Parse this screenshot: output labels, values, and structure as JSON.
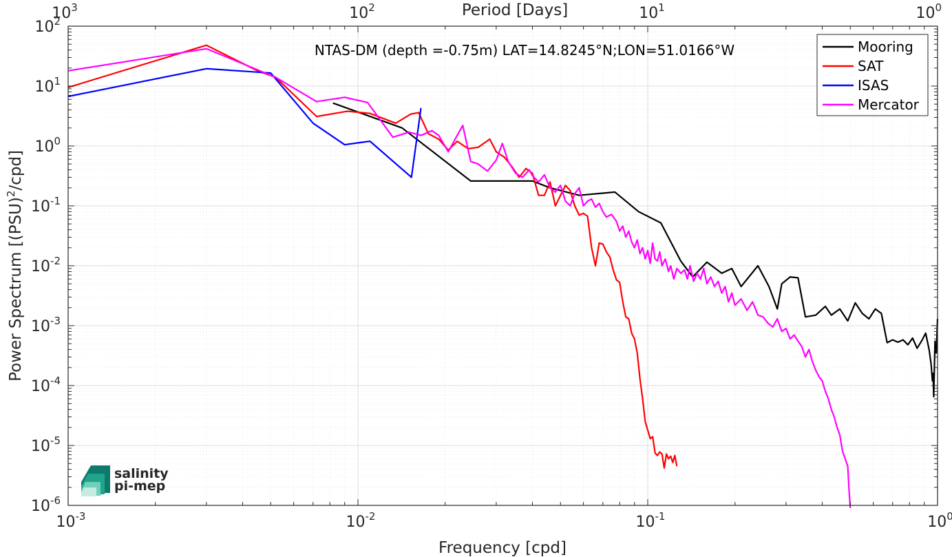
{
  "chart_data": {
    "type": "line",
    "title": "NTAS-DM (depth =-0.75m) LAT=14.8245°N;LON=51.0166°W",
    "xlabel": "Frequency [cpd]",
    "ylabel": "Power Spectrum [(PSU)²/cpd]",
    "x2label": "Period [Days]",
    "xscale": "log",
    "yscale": "log",
    "xlim": [
      0.001,
      1
    ],
    "ylim": [
      1e-06,
      100
    ],
    "grid": true,
    "legend_position": "top-right",
    "xticks": [
      {
        "base": "10",
        "exp": "-3"
      },
      {
        "base": "10",
        "exp": "-2"
      },
      {
        "base": "10",
        "exp": "-1"
      },
      {
        "base": "10",
        "exp": "0"
      }
    ],
    "x2ticks": [
      {
        "base": "10",
        "exp": "3"
      },
      {
        "base": "10",
        "exp": "2"
      },
      {
        "base": "10",
        "exp": "1"
      },
      {
        "base": "10",
        "exp": "0"
      }
    ],
    "yticks": [
      {
        "base": "10",
        "exp": "-6"
      },
      {
        "base": "10",
        "exp": "-5"
      },
      {
        "base": "10",
        "exp": "-4"
      },
      {
        "base": "10",
        "exp": "-3"
      },
      {
        "base": "10",
        "exp": "-2"
      },
      {
        "base": "10",
        "exp": "-1"
      },
      {
        "base": "10",
        "exp": "0"
      },
      {
        "base": "10",
        "exp": "1"
      },
      {
        "base": "10",
        "exp": "2"
      }
    ],
    "series": [
      {
        "name": "Mooring",
        "color": "#000000",
        "points": [
          [
            0.0082,
            5.2
          ],
          [
            0.0142,
            2.0
          ],
          [
            0.0245,
            0.26
          ],
          [
            0.04,
            0.26
          ],
          [
            0.046,
            0.2
          ],
          [
            0.058,
            0.15
          ],
          [
            0.077,
            0.17
          ],
          [
            0.093,
            0.08
          ],
          [
            0.111,
            0.052
          ],
          [
            0.13,
            0.012
          ],
          [
            0.143,
            0.0065
          ],
          [
            0.16,
            0.0115
          ],
          [
            0.18,
            0.0075
          ],
          [
            0.195,
            0.009
          ],
          [
            0.21,
            0.0045
          ],
          [
            0.24,
            0.01
          ],
          [
            0.262,
            0.0045
          ],
          [
            0.28,
            0.0019
          ],
          [
            0.29,
            0.005
          ],
          [
            0.31,
            0.0065
          ],
          [
            0.33,
            0.0063
          ],
          [
            0.35,
            0.0014
          ],
          [
            0.38,
            0.0015
          ],
          [
            0.41,
            0.0021
          ],
          [
            0.43,
            0.0015
          ],
          [
            0.46,
            0.0019
          ],
          [
            0.49,
            0.0012
          ],
          [
            0.52,
            0.0024
          ],
          [
            0.55,
            0.0016
          ],
          [
            0.58,
            0.0013
          ],
          [
            0.61,
            0.0019
          ],
          [
            0.64,
            0.0016
          ],
          [
            0.67,
            0.00052
          ],
          [
            0.7,
            0.00058
          ],
          [
            0.73,
            0.00053
          ],
          [
            0.76,
            0.00058
          ],
          [
            0.79,
            0.00048
          ],
          [
            0.82,
            0.00062
          ],
          [
            0.85,
            0.00042
          ],
          [
            0.88,
            0.00055
          ],
          [
            0.91,
            0.00075
          ],
          [
            0.935,
            0.0004
          ],
          [
            0.95,
            0.00023
          ],
          [
            0.96,
            0.00012
          ],
          [
            0.965,
            0.00016
          ],
          [
            0.97,
            6.5e-05
          ],
          [
            0.98,
            0.00055
          ],
          [
            0.99,
            0.00035
          ],
          [
            1.0,
            0.0013
          ]
        ]
      },
      {
        "name": "SAT",
        "color": "#ff0000",
        "points": [
          [
            0.001,
            9.5
          ],
          [
            0.003,
            48
          ],
          [
            0.0045,
            18
          ],
          [
            0.0052,
            14
          ],
          [
            0.0072,
            3.1
          ],
          [
            0.0092,
            3.8
          ],
          [
            0.011,
            3.5
          ],
          [
            0.0135,
            2.4
          ],
          [
            0.0152,
            3.4
          ],
          [
            0.0162,
            3.6
          ],
          [
            0.0175,
            1.6
          ],
          [
            0.019,
            1.3
          ],
          [
            0.0205,
            0.85
          ],
          [
            0.022,
            1.2
          ],
          [
            0.024,
            0.9
          ],
          [
            0.026,
            0.95
          ],
          [
            0.0285,
            1.3
          ],
          [
            0.03,
            0.8
          ],
          [
            0.032,
            0.65
          ],
          [
            0.034,
            0.45
          ],
          [
            0.036,
            0.3
          ],
          [
            0.038,
            0.42
          ],
          [
            0.04,
            0.35
          ],
          [
            0.042,
            0.15
          ],
          [
            0.044,
            0.15
          ],
          [
            0.046,
            0.25
          ],
          [
            0.048,
            0.1
          ],
          [
            0.05,
            0.15
          ],
          [
            0.052,
            0.22
          ],
          [
            0.054,
            0.18
          ],
          [
            0.056,
            0.1
          ],
          [
            0.058,
            0.07
          ],
          [
            0.06,
            0.075
          ],
          [
            0.062,
            0.067
          ],
          [
            0.064,
            0.02
          ],
          [
            0.066,
            0.01
          ],
          [
            0.068,
            0.024
          ],
          [
            0.07,
            0.023
          ],
          [
            0.072,
            0.017
          ],
          [
            0.074,
            0.014
          ],
          [
            0.076,
            0.0085
          ],
          [
            0.078,
            0.0058
          ],
          [
            0.08,
            0.0053
          ],
          [
            0.082,
            0.0025
          ],
          [
            0.084,
            0.0014
          ],
          [
            0.086,
            0.0013
          ],
          [
            0.088,
            0.00075
          ],
          [
            0.09,
            0.0006
          ],
          [
            0.092,
            0.00035
          ],
          [
            0.094,
            0.00013
          ],
          [
            0.096,
            6e-05
          ],
          [
            0.098,
            2.5e-05
          ],
          [
            0.1,
            1.8e-05
          ],
          [
            0.102,
            1.3e-05
          ],
          [
            0.104,
            1.4e-05
          ],
          [
            0.106,
            7.5e-06
          ],
          [
            0.108,
            6.8e-06
          ],
          [
            0.11,
            7.8e-06
          ],
          [
            0.112,
            7.2e-06
          ],
          [
            0.114,
            4.2e-06
          ],
          [
            0.116,
            7.2e-06
          ],
          [
            0.118,
            6e-06
          ],
          [
            0.12,
            6.6e-06
          ],
          [
            0.122,
            5.2e-06
          ],
          [
            0.124,
            6.8e-06
          ],
          [
            0.126,
            4.5e-06
          ]
        ]
      },
      {
        "name": "ISAS",
        "color": "#0000ff",
        "points": [
          [
            0.001,
            6.7
          ],
          [
            0.003,
            19.5
          ],
          [
            0.005,
            16.5
          ],
          [
            0.007,
            2.4
          ],
          [
            0.009,
            1.05
          ],
          [
            0.011,
            1.2
          ],
          [
            0.0153,
            0.3
          ],
          [
            0.0165,
            4.3
          ]
        ]
      },
      {
        "name": "Mercator",
        "color": "#ff00ff",
        "points": [
          [
            0.001,
            18
          ],
          [
            0.003,
            42
          ],
          [
            0.0052,
            14
          ],
          [
            0.0072,
            5.5
          ],
          [
            0.009,
            6.5
          ],
          [
            0.0108,
            5.3
          ],
          [
            0.0132,
            1.4
          ],
          [
            0.015,
            1.7
          ],
          [
            0.0165,
            1.5
          ],
          [
            0.018,
            1.8
          ],
          [
            0.019,
            1.5
          ],
          [
            0.0205,
            0.8
          ],
          [
            0.022,
            1.5
          ],
          [
            0.023,
            2.2
          ],
          [
            0.0245,
            0.55
          ],
          [
            0.026,
            0.5
          ],
          [
            0.028,
            0.38
          ],
          [
            0.03,
            0.58
          ],
          [
            0.0315,
            1.1
          ],
          [
            0.033,
            0.55
          ],
          [
            0.035,
            0.35
          ],
          [
            0.037,
            0.3
          ],
          [
            0.039,
            0.4
          ],
          [
            0.04,
            0.32
          ],
          [
            0.042,
            0.25
          ],
          [
            0.044,
            0.33
          ],
          [
            0.046,
            0.2
          ],
          [
            0.048,
            0.17
          ],
          [
            0.05,
            0.22
          ],
          [
            0.052,
            0.12
          ],
          [
            0.054,
            0.1
          ],
          [
            0.056,
            0.16
          ],
          [
            0.058,
            0.2
          ],
          [
            0.06,
            0.1
          ],
          [
            0.062,
            0.12
          ],
          [
            0.064,
            0.13
          ],
          [
            0.066,
            0.095
          ],
          [
            0.068,
            0.11
          ],
          [
            0.07,
            0.08
          ],
          [
            0.072,
            0.065
          ],
          [
            0.075,
            0.072
          ],
          [
            0.078,
            0.055
          ],
          [
            0.08,
            0.038
          ],
          [
            0.082,
            0.046
          ],
          [
            0.084,
            0.03
          ],
          [
            0.086,
            0.038
          ],
          [
            0.088,
            0.025
          ],
          [
            0.09,
            0.02
          ],
          [
            0.092,
            0.027
          ],
          [
            0.094,
            0.016
          ],
          [
            0.096,
            0.02
          ],
          [
            0.098,
            0.013
          ],
          [
            0.1,
            0.018
          ],
          [
            0.102,
            0.011
          ],
          [
            0.104,
            0.024
          ],
          [
            0.106,
            0.013
          ],
          [
            0.108,
            0.012
          ],
          [
            0.11,
            0.017
          ],
          [
            0.112,
            0.01
          ],
          [
            0.115,
            0.013
          ],
          [
            0.118,
            0.008
          ],
          [
            0.12,
            0.01
          ],
          [
            0.123,
            0.006
          ],
          [
            0.126,
            0.009
          ],
          [
            0.13,
            0.0075
          ],
          [
            0.134,
            0.0085
          ],
          [
            0.137,
            0.006
          ],
          [
            0.14,
            0.01
          ],
          [
            0.144,
            0.0055
          ],
          [
            0.148,
            0.0075
          ],
          [
            0.152,
            0.006
          ],
          [
            0.156,
            0.009
          ],
          [
            0.16,
            0.005
          ],
          [
            0.165,
            0.0065
          ],
          [
            0.17,
            0.0045
          ],
          [
            0.175,
            0.0055
          ],
          [
            0.18,
            0.0035
          ],
          [
            0.185,
            0.0045
          ],
          [
            0.19,
            0.0025
          ],
          [
            0.195,
            0.0035
          ],
          [
            0.2,
            0.0022
          ],
          [
            0.21,
            0.0028
          ],
          [
            0.22,
            0.0018
          ],
          [
            0.23,
            0.0025
          ],
          [
            0.24,
            0.0015
          ],
          [
            0.25,
            0.0014
          ],
          [
            0.26,
            0.0011
          ],
          [
            0.27,
            0.00095
          ],
          [
            0.28,
            0.0013
          ],
          [
            0.29,
            0.0008
          ],
          [
            0.3,
            0.0009
          ],
          [
            0.31,
            0.0006
          ],
          [
            0.32,
            0.0007
          ],
          [
            0.33,
            0.00055
          ],
          [
            0.34,
            0.00045
          ],
          [
            0.35,
            0.0003
          ],
          [
            0.36,
            0.0004
          ],
          [
            0.37,
            0.00025
          ],
          [
            0.38,
            0.00018
          ],
          [
            0.39,
            0.00014
          ],
          [
            0.4,
            0.00012
          ],
          [
            0.41,
            8e-05
          ],
          [
            0.42,
            6e-05
          ],
          [
            0.43,
            4e-05
          ],
          [
            0.44,
            3e-05
          ],
          [
            0.45,
            2e-05
          ],
          [
            0.46,
            1.5e-05
          ],
          [
            0.47,
            8e-06
          ],
          [
            0.48,
            6e-06
          ],
          [
            0.49,
            4.5e-06
          ],
          [
            0.495,
            1.8e-06
          ],
          [
            0.5,
            9e-07
          ]
        ]
      }
    ]
  },
  "logo": {
    "line1": "salinity",
    "line2": "pi-mep",
    "color": "#1aa08c"
  }
}
